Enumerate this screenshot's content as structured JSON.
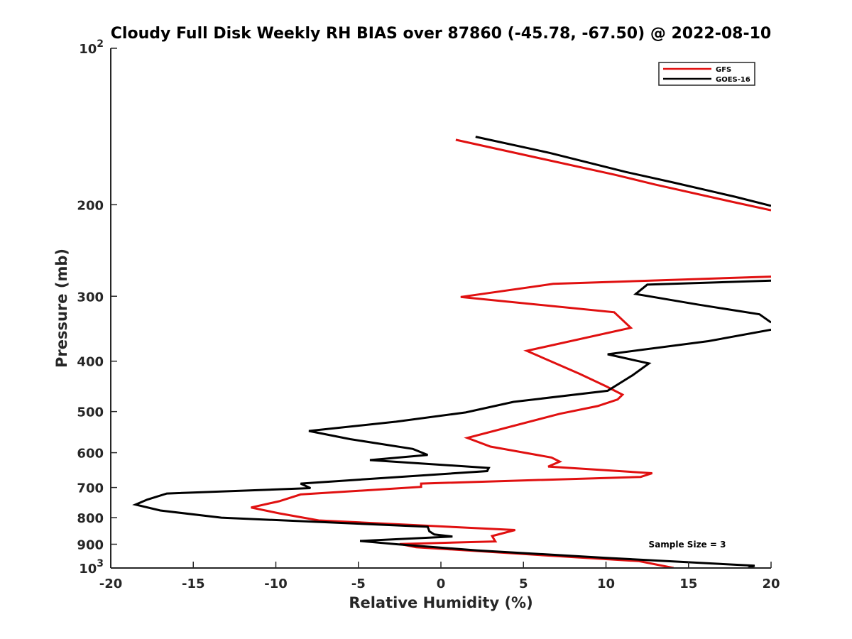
{
  "chart_data": {
    "type": "line",
    "title": "Cloudy Full Disk Weekly RH BIAS over 87860 (-45.78, -67.50) @ 2022-08-10",
    "xlabel": "Relative Humidity (%)",
    "ylabel": "Pressure (mb)",
    "xlim": [
      -20,
      20
    ],
    "ylim": [
      100,
      1000
    ],
    "yscale": "log",
    "y_reversed": true,
    "grid": false,
    "legend_position": "top-right",
    "x_ticks": [
      -20,
      -15,
      -10,
      -5,
      0,
      5,
      10,
      15,
      20
    ],
    "x_tick_labels": [
      "-20",
      "-15",
      "-10",
      "-5",
      "0",
      "5",
      "10",
      "15",
      "20"
    ],
    "y_ticks": [
      100,
      200,
      300,
      400,
      500,
      600,
      700,
      800,
      900,
      1000
    ],
    "y_tick_labels": [
      {
        "base": "10",
        "exp": "2"
      },
      {
        "base": "200",
        "exp": ""
      },
      {
        "base": "300",
        "exp": ""
      },
      {
        "base": "400",
        "exp": ""
      },
      {
        "base": "500",
        "exp": ""
      },
      {
        "base": "600",
        "exp": ""
      },
      {
        "base": "700",
        "exp": ""
      },
      {
        "base": "800",
        "exp": ""
      },
      {
        "base": "900",
        "exp": ""
      },
      {
        "base": "10",
        "exp": "3"
      }
    ],
    "series": [
      {
        "name": "GFS",
        "color": "#e01010",
        "segments": [
          [
            [
              0.9,
              150
            ],
            [
              4.9,
              160
            ],
            [
              10.5,
              175
            ],
            [
              13.0,
              183
            ],
            [
              17.5,
              197
            ],
            [
              20.0,
              205
            ]
          ],
          [
            [
              20.0,
              275
            ],
            [
              14.0,
              279
            ],
            [
              6.8,
              284
            ],
            [
              1.2,
              301
            ],
            [
              10.5,
              322
            ],
            [
              11.5,
              345
            ],
            [
              5.2,
              382
            ],
            [
              8.4,
              423
            ],
            [
              10.0,
              447
            ],
            [
              11.0,
              464
            ],
            [
              10.7,
              474
            ],
            [
              9.5,
              488
            ],
            [
              7.2,
              505
            ],
            [
              1.6,
              562
            ],
            [
              3.0,
              584
            ],
            [
              6.7,
              613
            ],
            [
              7.2,
              624
            ],
            [
              6.5,
              638
            ],
            [
              12.8,
              657
            ],
            [
              12.1,
              668
            ],
            [
              -1.2,
              688
            ],
            [
              -1.2,
              698
            ],
            [
              -8.5,
              722
            ],
            [
              -9.8,
              744
            ],
            [
              -11.5,
              765
            ],
            [
              -9.8,
              785
            ],
            [
              -7.4,
              810
            ],
            [
              4.5,
              845
            ],
            [
              3.1,
              868
            ],
            [
              3.3,
              889
            ],
            [
              -2.5,
              899
            ],
            [
              -1.5,
              912
            ],
            [
              5.0,
              940
            ],
            [
              12.0,
              970
            ],
            [
              14.1,
              1000
            ]
          ]
        ]
      },
      {
        "name": "GOES-16",
        "color": "#000000",
        "segments": [
          [
            [
              2.1,
              148
            ],
            [
              6.6,
              159
            ],
            [
              11.2,
              173
            ],
            [
              14.0,
              181
            ],
            [
              17.8,
              193
            ],
            [
              20.0,
              201
            ]
          ],
          [
            [
              20.0,
              280
            ],
            [
              12.5,
              285
            ],
            [
              11.8,
              297
            ],
            [
              15.5,
              311
            ],
            [
              19.3,
              325
            ],
            [
              20.0,
              337
            ]
          ],
          [
            [
              20.0,
              348
            ],
            [
              16.2,
              366
            ],
            [
              10.1,
              388
            ],
            [
              12.6,
              404
            ],
            [
              11.6,
              426
            ],
            [
              10.1,
              456
            ],
            [
              4.4,
              479
            ],
            [
              1.5,
              502
            ],
            [
              -2.7,
              523
            ],
            [
              -8.0,
              545
            ],
            [
              -5.5,
              565
            ],
            [
              -1.7,
              590
            ],
            [
              -0.8,
              606
            ],
            [
              -4.3,
              620
            ],
            [
              2.9,
              642
            ],
            [
              2.8,
              651
            ],
            [
              -8.5,
              688
            ],
            [
              -7.9,
              702
            ],
            [
              -16.6,
              719
            ],
            [
              -17.8,
              739
            ],
            [
              -18.5,
              755
            ],
            [
              -17.0,
              775
            ],
            [
              -13.3,
              800
            ],
            [
              -0.8,
              833
            ],
            [
              -0.7,
              850
            ],
            [
              -0.4,
              862
            ],
            [
              0.7,
              870
            ],
            [
              -4.9,
              887
            ],
            [
              -2.7,
              900
            ],
            [
              2.2,
              925
            ],
            [
              10.0,
              956
            ],
            [
              19.0,
              990
            ],
            [
              18.6,
              1000
            ]
          ]
        ]
      }
    ],
    "annotations": [
      "Sample Size = 3"
    ]
  }
}
